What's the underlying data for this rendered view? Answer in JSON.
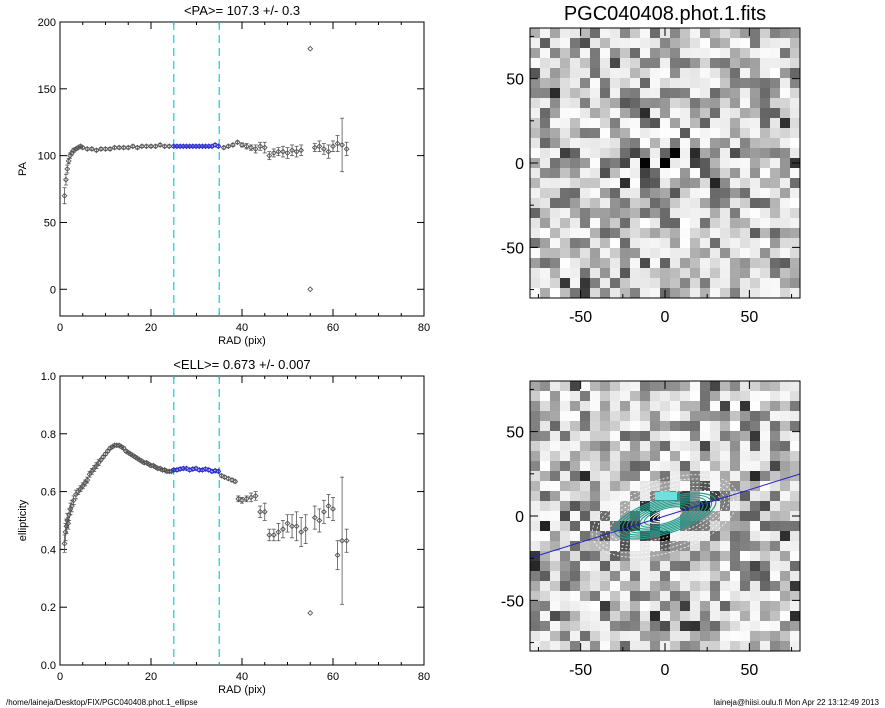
{
  "footer": {
    "path": "/home/laineja/Desktop/FIX/PGC040408.phot.1_ellipse",
    "user_date": "laineja@hiisi.oulu.fi  Mon Apr 22 13:12:49 2013"
  },
  "chart_data": [
    {
      "type": "scatter",
      "title": "<PA>= 107.3 +/-   0.3",
      "xlabel": "RAD (pix)",
      "ylabel": "PA",
      "xlim": [
        0,
        80
      ],
      "ylim": [
        -20,
        200
      ],
      "xticks": [
        0,
        20,
        40,
        60,
        80
      ],
      "yticks": [
        0,
        50,
        100,
        150,
        200
      ],
      "vlines": [
        25,
        35
      ],
      "colors": {
        "points": "#555555",
        "highlight": "#2b2bd0",
        "vline": "#00d8d8"
      },
      "series": [
        {
          "x": [
            1.0,
            1.3,
            1.6,
            1.9,
            2.2,
            2.6,
            3.0,
            3.5,
            4.0,
            4.5,
            5,
            6,
            7,
            8,
            9,
            10,
            11,
            12,
            13,
            14,
            15,
            16,
            17,
            18,
            19,
            20,
            21,
            22,
            23,
            24
          ],
          "y": [
            70,
            82,
            90,
            96,
            100,
            102,
            104,
            105,
            106,
            107,
            106,
            105,
            105,
            104,
            105,
            105,
            105,
            106,
            106,
            106,
            106,
            107,
            106,
            107,
            107,
            107,
            107,
            108,
            107,
            107
          ],
          "err": [
            6,
            4,
            3,
            2,
            2,
            1.5,
            1.5,
            1,
            1,
            1,
            1,
            1,
            1,
            1,
            1,
            1,
            1,
            1,
            1,
            1,
            1,
            1,
            1,
            1,
            1,
            1,
            1,
            1,
            1,
            1
          ]
        },
        {
          "highlight": true,
          "x": [
            25,
            25.7,
            26.4,
            27.1,
            27.8,
            28.5,
            29.2,
            29.9,
            30.6,
            31.3,
            32,
            32.7,
            33.4,
            34.1,
            34.8
          ],
          "y": [
            107,
            107,
            107,
            107,
            107,
            107,
            107,
            107,
            107,
            107,
            107,
            107,
            107,
            108,
            107
          ],
          "err": [
            1,
            1,
            1,
            1,
            1,
            1,
            1,
            1,
            1,
            1,
            1,
            1,
            1,
            1,
            1
          ]
        },
        {
          "x": [
            36,
            37,
            38,
            39,
            40,
            41,
            42,
            43,
            44,
            45,
            46,
            47,
            48,
            49,
            50,
            51,
            52,
            53,
            55,
            55,
            56,
            57,
            58,
            59,
            60,
            61,
            62,
            63
          ],
          "y": [
            106,
            107,
            108,
            110,
            108,
            107,
            106,
            105,
            107,
            106,
            100,
            102,
            103,
            103,
            102,
            104,
            103,
            104,
            180,
            0,
            106,
            107,
            105,
            103,
            107,
            109,
            108,
            105
          ],
          "err": [
            1,
            1,
            1,
            1,
            1.5,
            2,
            2,
            3,
            3,
            4,
            3,
            3,
            3,
            4,
            4,
            4,
            4,
            4,
            0,
            0,
            3,
            4,
            4,
            5,
            4,
            6,
            20,
            5
          ]
        }
      ]
    },
    {
      "type": "heatmap",
      "title": "PGC040408.phot.1.fits",
      "xlim": [
        -80,
        80
      ],
      "ylim": [
        -80,
        80
      ],
      "xticks": [
        -50,
        0,
        50
      ],
      "yticks": [
        -50,
        0,
        50
      ]
    },
    {
      "type": "scatter",
      "title": "<ELL>= 0.673 +/-  0.007",
      "xlabel": "RAD (pix)",
      "ylabel": "ellipticity",
      "xlim": [
        0,
        80
      ],
      "ylim": [
        0,
        1
      ],
      "xticks": [
        0,
        20,
        40,
        60,
        80
      ],
      "yticks": [
        0.0,
        0.2,
        0.4,
        0.6,
        0.8,
        1.0
      ],
      "vlines": [
        25,
        35
      ],
      "colors": {
        "points": "#555555",
        "highlight": "#2b2bd0",
        "vline": "#00d8d8"
      },
      "series": [
        {
          "x": [
            1.0,
            1.2,
            1.4,
            1.6,
            1.8,
            2.0,
            2.3,
            2.6,
            3.0,
            3.5,
            4.0,
            4.5,
            5,
            5.5,
            6,
            6.5,
            7,
            7.5,
            8,
            8.5,
            9,
            9.5,
            10,
            10.5,
            11,
            11.5,
            12,
            12.5,
            13,
            13.5,
            14,
            14.5,
            15,
            15.5,
            16,
            16.5,
            17,
            17.5,
            18,
            18.5,
            19,
            19.5,
            20,
            20.5,
            21,
            21.5,
            22,
            22.5,
            23,
            23.5,
            24,
            24.5
          ],
          "y": [
            0.42,
            0.46,
            0.48,
            0.5,
            0.49,
            0.52,
            0.54,
            0.55,
            0.57,
            0.59,
            0.6,
            0.61,
            0.62,
            0.63,
            0.64,
            0.66,
            0.67,
            0.68,
            0.69,
            0.7,
            0.71,
            0.72,
            0.73,
            0.74,
            0.75,
            0.755,
            0.76,
            0.76,
            0.76,
            0.755,
            0.75,
            0.74,
            0.735,
            0.73,
            0.725,
            0.72,
            0.715,
            0.71,
            0.705,
            0.7,
            0.7,
            0.695,
            0.69,
            0.69,
            0.685,
            0.68,
            0.68,
            0.675,
            0.675,
            0.67,
            0.67,
            0.67
          ],
          "err": [
            0.03,
            0.03,
            0.025,
            0.025,
            0.02,
            0.02,
            0.02,
            0.02,
            0.015,
            0.015,
            0.01,
            0.01,
            0.01,
            0.01,
            0.01,
            0.01,
            0.01,
            0.01,
            0.01,
            0.01,
            0.005,
            0.005,
            0.005,
            0.005,
            0.005,
            0.005,
            0.005,
            0.005,
            0.005,
            0.005,
            0.005,
            0.005,
            0.005,
            0.005,
            0.005,
            0.005,
            0.005,
            0.005,
            0.005,
            0.005,
            0.005,
            0.005,
            0.005,
            0.005,
            0.005,
            0.005,
            0.005,
            0.005,
            0.005,
            0.005,
            0.005,
            0.005
          ]
        },
        {
          "highlight": true,
          "x": [
            25,
            25.7,
            26.4,
            27.1,
            27.8,
            28.5,
            29.2,
            29.9,
            30.6,
            31.3,
            32,
            32.7,
            33.4,
            34.1,
            34.8
          ],
          "y": [
            0.675,
            0.675,
            0.678,
            0.68,
            0.68,
            0.675,
            0.678,
            0.68,
            0.675,
            0.675,
            0.678,
            0.675,
            0.67,
            0.672,
            0.67
          ],
          "err": [
            0.005,
            0.005,
            0.005,
            0.005,
            0.005,
            0.005,
            0.005,
            0.005,
            0.005,
            0.005,
            0.005,
            0.005,
            0.005,
            0.005,
            0.005
          ]
        },
        {
          "x": [
            35.5,
            36.2,
            37,
            37.8,
            38.5,
            39.2,
            40,
            41,
            42,
            43,
            44,
            45,
            46,
            47,
            48,
            49,
            50,
            51,
            52,
            53,
            54,
            55,
            56,
            57,
            58,
            59,
            60,
            61,
            62,
            63
          ],
          "y": [
            0.655,
            0.65,
            0.645,
            0.64,
            0.635,
            0.575,
            0.57,
            0.575,
            0.58,
            0.585,
            0.53,
            0.53,
            0.45,
            0.45,
            0.46,
            0.47,
            0.49,
            0.48,
            0.48,
            0.46,
            0.47,
            0.18,
            0.51,
            0.5,
            0.53,
            0.55,
            0.54,
            0.38,
            0.43,
            0.43
          ],
          "err": [
            0.005,
            0.005,
            0.005,
            0.005,
            0.005,
            0.01,
            0.01,
            0.01,
            0.015,
            0.015,
            0.02,
            0.03,
            0.02,
            0.02,
            0.03,
            0.03,
            0.03,
            0.04,
            0.05,
            0.05,
            0.05,
            0.0,
            0.04,
            0.04,
            0.04,
            0.04,
            0.04,
            0.05,
            0.22,
            0.04
          ]
        }
      ]
    },
    {
      "type": "heatmap",
      "title": "",
      "xlim": [
        -80,
        80
      ],
      "ylim": [
        -80,
        80
      ],
      "xticks": [
        -50,
        0,
        50
      ],
      "yticks": [
        -50,
        0,
        50
      ],
      "pa_line": {
        "angle_deg": 17.3,
        "color": "#2222cc"
      },
      "ellipse_colors": [
        "#ffffff",
        "#1f9a8a",
        "#ffffff"
      ]
    }
  ]
}
